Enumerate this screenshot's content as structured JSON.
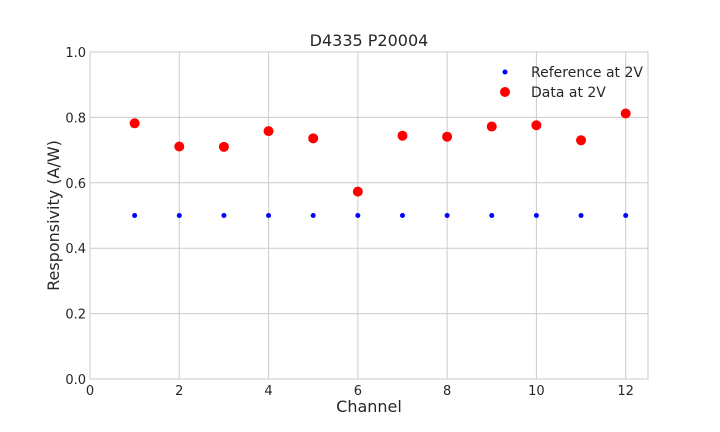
{
  "chart_data": {
    "type": "scatter",
    "title": "D4335 P20004",
    "xlabel": "Channel",
    "ylabel": "Responsivity (A/W)",
    "xlim": [
      0,
      12.5
    ],
    "ylim": [
      0.0,
      1.0
    ],
    "xticks": [
      "0",
      "2",
      "4",
      "6",
      "8",
      "10",
      "12"
    ],
    "yticks": [
      "0.0",
      "0.2",
      "0.4",
      "0.6",
      "0.8",
      "1.0"
    ],
    "grid": true,
    "legend_position": "top-right",
    "series": [
      {
        "name": "Reference at 2V",
        "color": "#0000ff",
        "marker": "small-dot",
        "x": [
          1,
          2,
          3,
          4,
          5,
          6,
          7,
          8,
          9,
          10,
          11,
          12
        ],
        "y": [
          0.5,
          0.5,
          0.5,
          0.5,
          0.5,
          0.5,
          0.5,
          0.5,
          0.5,
          0.5,
          0.5,
          0.5
        ]
      },
      {
        "name": "Data at 2V",
        "color": "#ff0000",
        "marker": "large-dot",
        "x": [
          1,
          2,
          3,
          4,
          5,
          6,
          7,
          8,
          9,
          10,
          11,
          12
        ],
        "y": [
          0.782,
          0.711,
          0.71,
          0.758,
          0.736,
          0.573,
          0.744,
          0.741,
          0.772,
          0.776,
          0.73,
          0.812
        ]
      }
    ]
  }
}
